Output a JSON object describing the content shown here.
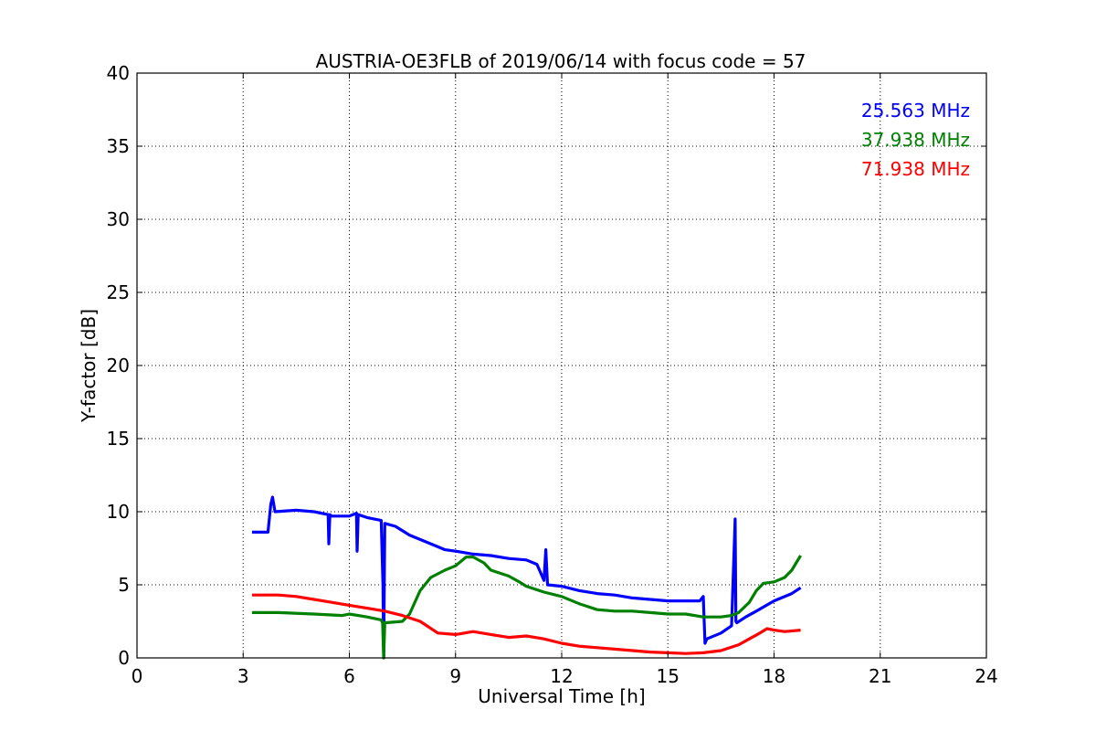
{
  "chart_data": {
    "type": "line",
    "title": "AUSTRIA-OE3FLB of 2019/06/14 with focus code = 57",
    "xlabel": "Universal Time [h]",
    "ylabel": "Y-factor [dB]",
    "xlim": [
      0,
      24
    ],
    "ylim": [
      0,
      40
    ],
    "xticks": [
      0,
      3,
      6,
      9,
      12,
      15,
      18,
      21,
      24
    ],
    "yticks": [
      0,
      5,
      10,
      15,
      20,
      25,
      30,
      35,
      40
    ],
    "grid": true,
    "legend_position": "top-right",
    "series": [
      {
        "name": "25.563 MHz",
        "color": "#0000ff",
        "x": [
          3.25,
          3.7,
          3.78,
          3.83,
          3.9,
          4.5,
          5.0,
          5.4,
          5.42,
          5.45,
          5.5,
          6.0,
          6.2,
          6.22,
          6.25,
          6.5,
          6.9,
          6.95,
          6.97,
          7.0,
          7.3,
          7.7,
          8.0,
          8.5,
          8.7,
          9.0,
          9.5,
          10.0,
          10.5,
          11.0,
          11.3,
          11.5,
          11.55,
          11.6,
          12.0,
          12.5,
          13.0,
          13.5,
          14.0,
          14.5,
          15.0,
          15.5,
          15.9,
          16.0,
          16.05,
          16.1,
          16.5,
          16.8,
          16.9,
          16.92,
          16.95,
          17.2,
          17.5,
          18.0,
          18.5,
          18.75
        ],
        "y": [
          8.6,
          8.6,
          10.5,
          11.0,
          10.0,
          10.1,
          10.0,
          9.8,
          7.8,
          9.8,
          9.7,
          9.7,
          9.9,
          7.3,
          9.8,
          9.6,
          9.4,
          5.0,
          0.0,
          9.2,
          9.0,
          8.4,
          8.1,
          7.6,
          7.4,
          7.3,
          7.1,
          7.0,
          6.8,
          6.7,
          6.4,
          5.3,
          7.4,
          5.0,
          4.9,
          4.6,
          4.4,
          4.3,
          4.1,
          4.0,
          3.9,
          3.9,
          3.9,
          4.2,
          1.0,
          1.3,
          1.7,
          2.2,
          9.5,
          2.5,
          2.4,
          2.8,
          3.2,
          3.9,
          4.4,
          4.8
        ]
      },
      {
        "name": "37.938 MHz",
        "color": "#008000",
        "x": [
          3.25,
          4.0,
          5.0,
          5.8,
          6.0,
          6.5,
          6.9,
          6.94,
          6.97,
          7.0,
          7.5,
          7.7,
          8.0,
          8.3,
          8.7,
          9.0,
          9.3,
          9.5,
          9.8,
          10.0,
          10.5,
          10.8,
          11.0,
          11.5,
          12.0,
          12.5,
          13.0,
          13.5,
          14.0,
          14.5,
          15.0,
          15.5,
          16.0,
          16.5,
          16.8,
          17.0,
          17.3,
          17.5,
          17.7,
          18.0,
          18.3,
          18.5,
          18.75
        ],
        "y": [
          3.1,
          3.1,
          3.0,
          2.9,
          3.0,
          2.8,
          2.6,
          2.4,
          0.0,
          2.4,
          2.5,
          3.0,
          4.6,
          5.5,
          6.0,
          6.3,
          6.9,
          6.9,
          6.5,
          6.0,
          5.6,
          5.2,
          4.9,
          4.5,
          4.2,
          3.7,
          3.3,
          3.2,
          3.2,
          3.1,
          3.0,
          3.0,
          2.8,
          2.8,
          2.9,
          3.1,
          3.8,
          4.6,
          5.1,
          5.2,
          5.5,
          6.0,
          7.0
        ]
      },
      {
        "name": "71.938 MHz",
        "color": "#ff0000",
        "x": [
          3.25,
          4.0,
          4.5,
          5.0,
          5.5,
          6.0,
          6.5,
          7.0,
          7.5,
          8.0,
          8.5,
          9.0,
          9.5,
          10.0,
          10.5,
          11.0,
          11.5,
          12.0,
          12.5,
          13.0,
          13.5,
          14.0,
          14.5,
          15.0,
          15.5,
          16.0,
          16.5,
          17.0,
          17.3,
          17.6,
          17.8,
          18.0,
          18.3,
          18.75
        ],
        "y": [
          4.3,
          4.3,
          4.2,
          4.0,
          3.8,
          3.6,
          3.4,
          3.2,
          2.9,
          2.5,
          1.7,
          1.6,
          1.8,
          1.6,
          1.4,
          1.5,
          1.3,
          1.0,
          0.8,
          0.7,
          0.6,
          0.5,
          0.4,
          0.35,
          0.3,
          0.35,
          0.5,
          0.9,
          1.3,
          1.7,
          2.0,
          1.9,
          1.8,
          1.9
        ]
      }
    ]
  }
}
